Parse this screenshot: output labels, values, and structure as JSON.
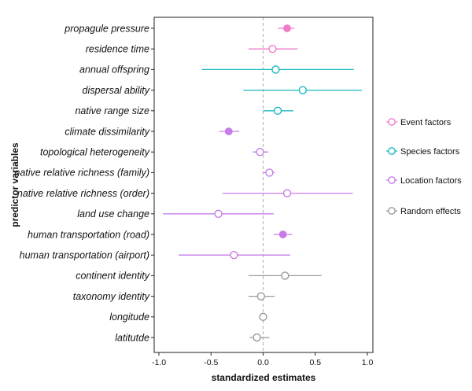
{
  "chart_data": {
    "type": "forest",
    "xlabel": "standardized estimates",
    "ylabel": "predictor variables",
    "xlim": [
      -1.0,
      1.0
    ],
    "xticks": [
      "-1.0",
      "-0.5",
      "0.0",
      "0.5",
      "1.0"
    ],
    "xtick_values": [
      -1.0,
      -0.5,
      0.0,
      0.5,
      1.0
    ],
    "reference_line": 0,
    "legend": [
      {
        "key": "event",
        "label": "Event factors",
        "color": "#f07cc8"
      },
      {
        "key": "species",
        "label": "Species factors",
        "color": "#1ab8c0"
      },
      {
        "key": "location",
        "label": "Location factors",
        "color": "#c67be8"
      },
      {
        "key": "random",
        "label": "Random effects",
        "color": "#9a9a9a"
      }
    ],
    "rows": [
      {
        "label": "propagule pressure",
        "group": "event",
        "estimate": 0.23,
        "lo": 0.14,
        "hi": 0.3,
        "significant": true
      },
      {
        "label": "residence time",
        "group": "event",
        "estimate": 0.09,
        "lo": -0.14,
        "hi": 0.33,
        "significant": false
      },
      {
        "label": "annual offspring",
        "group": "species",
        "estimate": 0.12,
        "lo": -0.59,
        "hi": 0.87,
        "significant": false
      },
      {
        "label": "dispersal ability",
        "group": "species",
        "estimate": 0.38,
        "lo": -0.19,
        "hi": 0.95,
        "significant": false
      },
      {
        "label": "native range size",
        "group": "species",
        "estimate": 0.14,
        "lo": 0.0,
        "hi": 0.29,
        "significant": false
      },
      {
        "label": "climate dissimilarity",
        "group": "location",
        "estimate": -0.33,
        "lo": -0.42,
        "hi": -0.23,
        "significant": true
      },
      {
        "label": "topological heterogeneity",
        "group": "location",
        "estimate": -0.03,
        "lo": -0.1,
        "hi": 0.05,
        "significant": false
      },
      {
        "label": "native relative richness (family)",
        "group": "location",
        "estimate": 0.06,
        "lo": 0.0,
        "hi": 0.11,
        "significant": false
      },
      {
        "label": "native relative richness (order)",
        "group": "location",
        "estimate": 0.23,
        "lo": -0.39,
        "hi": 0.86,
        "significant": false
      },
      {
        "label": "land use change",
        "group": "location",
        "estimate": -0.43,
        "lo": -0.96,
        "hi": 0.1,
        "significant": false
      },
      {
        "label": "human transportation (road)",
        "group": "location",
        "estimate": 0.19,
        "lo": 0.1,
        "hi": 0.28,
        "significant": true
      },
      {
        "label": "human transportation (airport)",
        "group": "location",
        "estimate": -0.28,
        "lo": -0.81,
        "hi": 0.26,
        "significant": false
      },
      {
        "label": "continent identity",
        "group": "random",
        "estimate": 0.21,
        "lo": -0.14,
        "hi": 0.56,
        "significant": false
      },
      {
        "label": "taxonomy identity",
        "group": "random",
        "estimate": -0.02,
        "lo": -0.14,
        "hi": 0.11,
        "significant": false
      },
      {
        "label": "longitude",
        "group": "random",
        "estimate": 0.0,
        "lo": 0.0,
        "hi": 0.0,
        "significant": false
      },
      {
        "label": "latitutde",
        "group": "random",
        "estimate": -0.06,
        "lo": -0.13,
        "hi": 0.06,
        "significant": false
      }
    ]
  }
}
